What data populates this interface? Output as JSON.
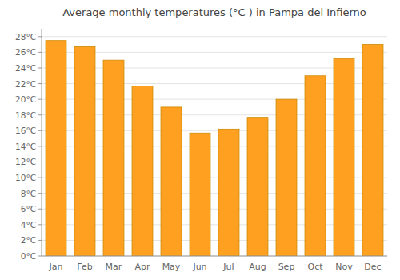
{
  "chart_data": {
    "type": "bar",
    "title": "Average monthly temperatures (°C ) in Pampa del Infierno",
    "categories": [
      "Jan",
      "Feb",
      "Mar",
      "Apr",
      "May",
      "Jun",
      "Jul",
      "Aug",
      "Sep",
      "Oct",
      "Nov",
      "Dec"
    ],
    "values": [
      27.5,
      26.7,
      25.0,
      21.7,
      19.0,
      15.7,
      16.2,
      17.7,
      20.0,
      23.0,
      25.2,
      27.0
    ],
    "color": "#FFA020",
    "ylim": [
      0,
      29
    ],
    "yticks": [
      {
        "value": 0,
        "label": "0°C"
      },
      {
        "value": 2,
        "label": "2°C"
      },
      {
        "value": 4,
        "label": "4°C"
      },
      {
        "value": 6,
        "label": "6°C"
      },
      {
        "value": 8,
        "label": "8°C"
      },
      {
        "value": 10,
        "label": "10°C"
      },
      {
        "value": 12,
        "label": "12°C"
      },
      {
        "value": 14,
        "label": "14°C"
      },
      {
        "value": 16,
        "label": "16°C"
      },
      {
        "value": 18,
        "label": "18°C"
      },
      {
        "value": 20,
        "label": "20°C"
      },
      {
        "value": 22,
        "label": "22°C"
      },
      {
        "value": 24,
        "label": "24°C"
      },
      {
        "value": 26,
        "label": "26°C"
      },
      {
        "value": 28,
        "label": "28°C"
      }
    ],
    "grid": true
  }
}
